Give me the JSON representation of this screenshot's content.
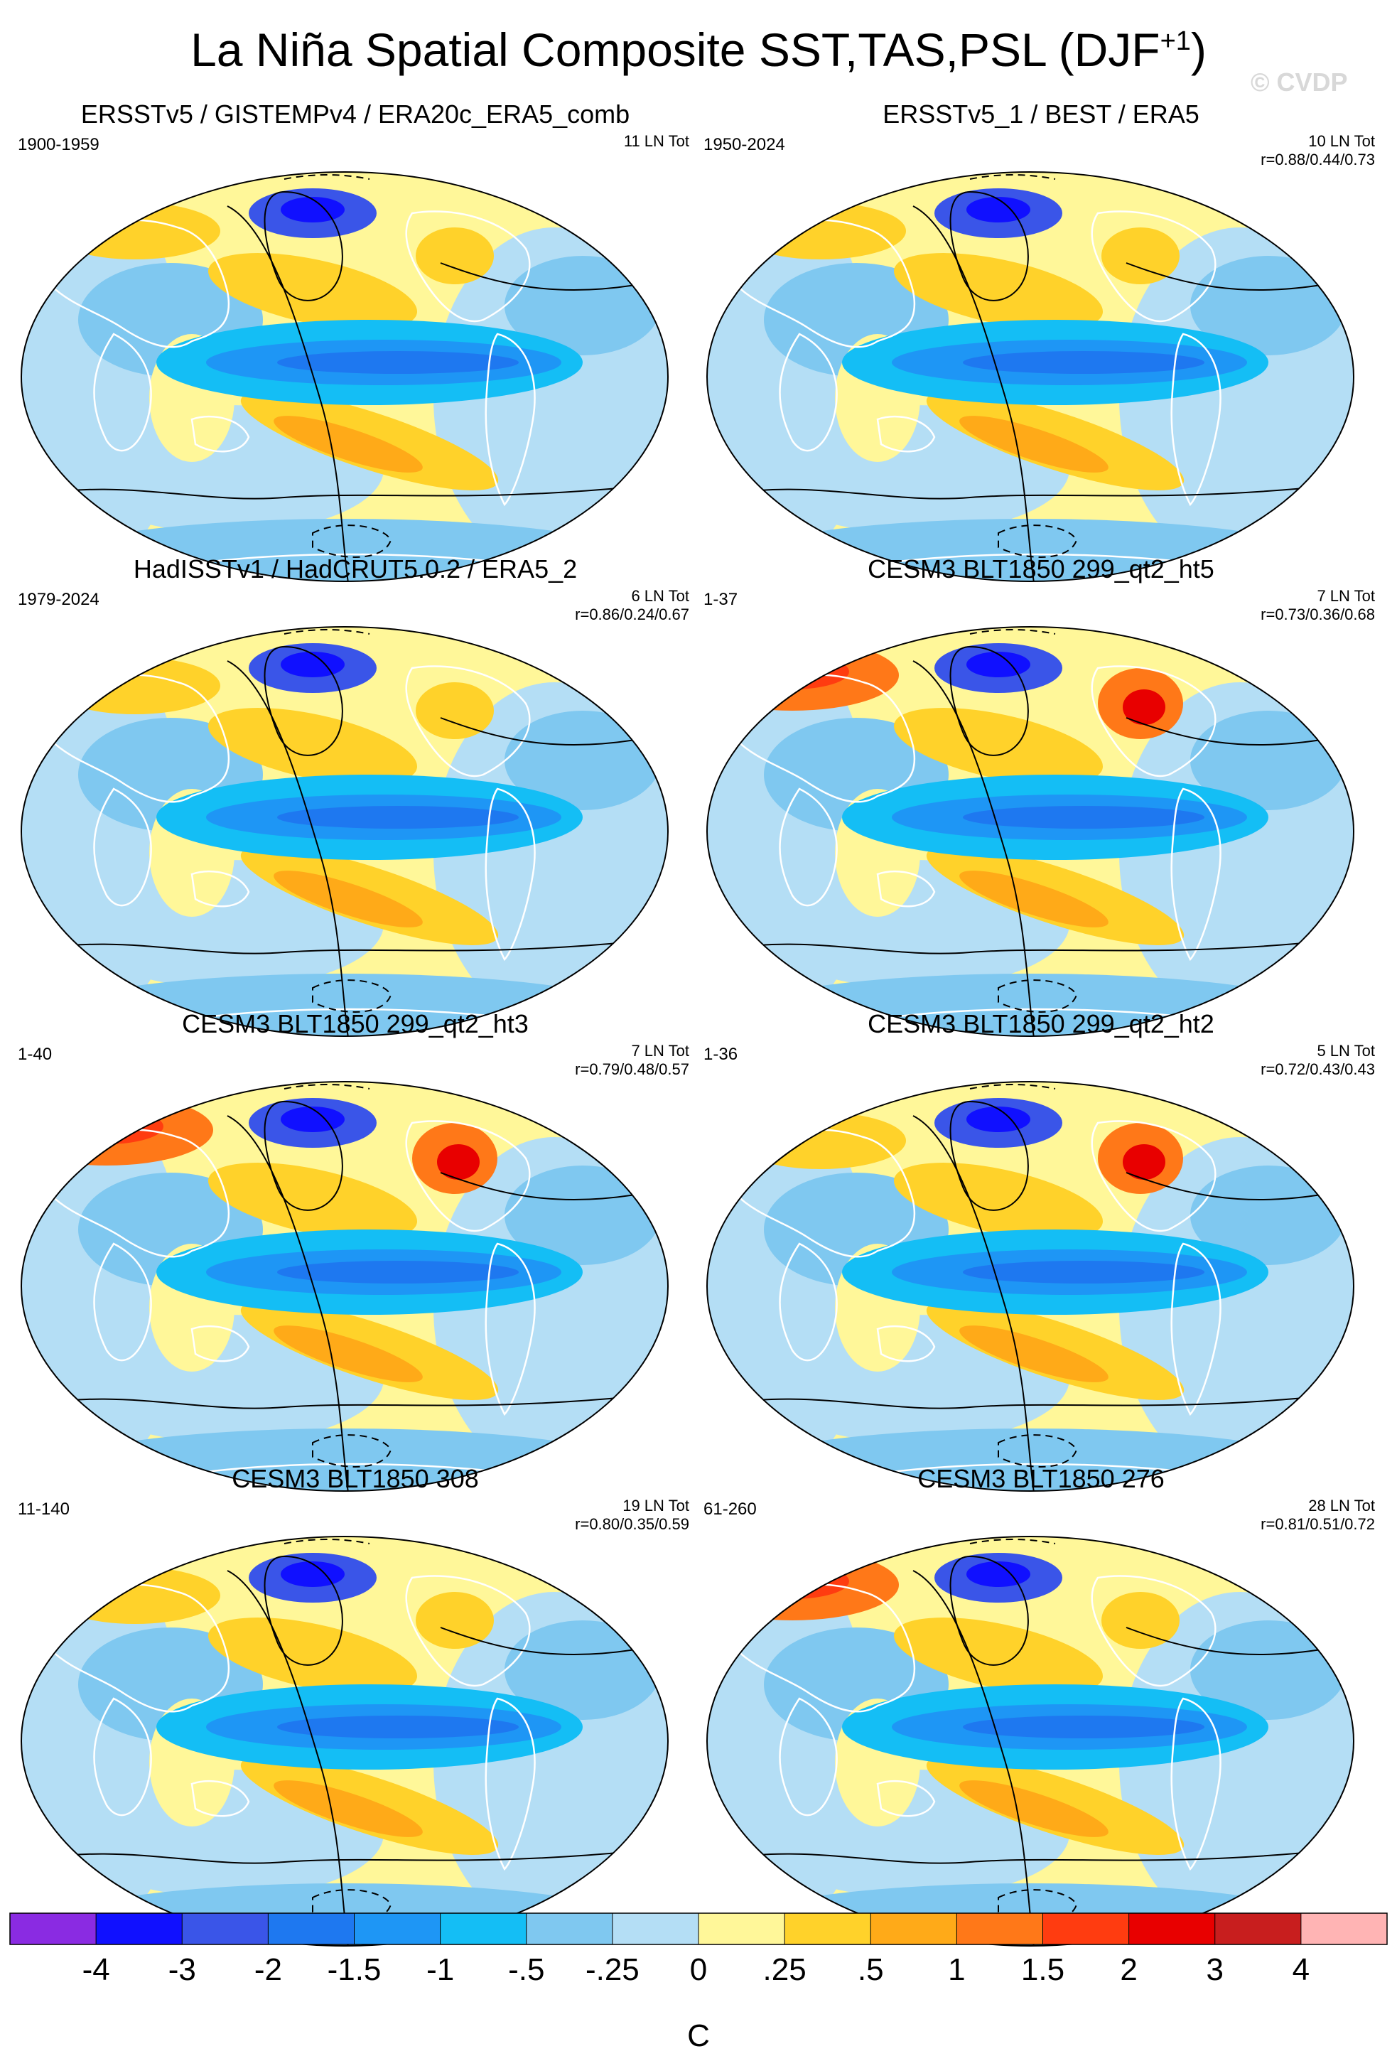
{
  "header": {
    "title": "La Niña Spatial Composite SST,TAS,PSL (DJF",
    "title_superscript": "+1",
    "title_close": ")",
    "copyright": "© CVDP"
  },
  "colors": {
    "ocean_base": "#fff799",
    "land_outline": "#ffffff",
    "contour": "#000000"
  },
  "chart_data": {
    "type": "heatmap",
    "projection": "Robinson (global)",
    "variables": [
      "SST",
      "TAS",
      "PSL"
    ],
    "season": "DJF+1",
    "colorbar": {
      "label": "C",
      "levels": [
        "-4",
        "-3",
        "-2",
        "-1.5",
        "-1",
        "-.5",
        "-.25",
        "0",
        ".25",
        ".5",
        "1",
        "1.5",
        "2",
        "3",
        "4"
      ],
      "colors": [
        "#8a2be2",
        "#1010ff",
        "#3a55e8",
        "#1e78f0",
        "#1e96f5",
        "#14bef5",
        "#7fc8f0",
        "#b4def5",
        "#fff799",
        "#ffd22a",
        "#ffaa18",
        "#ff7818",
        "#ff3c10",
        "#e80000",
        "#c81e1e",
        "#ffb4b4"
      ]
    },
    "panels": [
      {
        "title": "ERSSTv5 / GISTEMPv4 / ERA20c_ERA5_comb",
        "period": "1900-1959",
        "count": "11 LN Tot",
        "r": "",
        "warm_arctic": false,
        "hotspot": false
      },
      {
        "title": "ERSSTv5_1 / BEST / ERA5",
        "period": "1950-2024",
        "count": "10 LN Tot",
        "r": "r=0.88/0.44/0.73",
        "warm_arctic": false,
        "hotspot": false
      },
      {
        "title": "HadISSTv1 / HadCRUT5.0.2 / ERA5_2",
        "period": "1979-2024",
        "count": "6 LN Tot",
        "r": "r=0.86/0.24/0.67",
        "warm_arctic": false,
        "hotspot": false
      },
      {
        "title": "CESM3 BLT1850 299_qt2_ht5",
        "period": "1-37",
        "count": "7 LN Tot",
        "r": "r=0.73/0.36/0.68",
        "warm_arctic": true,
        "hotspot": true
      },
      {
        "title": "CESM3 BLT1850 299_qt2_ht3",
        "period": "1-40",
        "count": "7 LN Tot",
        "r": "r=0.79/0.48/0.57",
        "warm_arctic": true,
        "hotspot": true
      },
      {
        "title": "CESM3 BLT1850 299_qt2_ht2",
        "period": "1-36",
        "count": "5 LN Tot",
        "r": "r=0.72/0.43/0.43",
        "warm_arctic": false,
        "hotspot": true
      },
      {
        "title": "CESM3 BLT1850 308",
        "period": "11-140",
        "count": "19 LN Tot",
        "r": "r=0.80/0.35/0.59",
        "warm_arctic": false,
        "hotspot": false
      },
      {
        "title": "CESM3 BLT1850 276",
        "period": "61-260",
        "count": "28 LN Tot",
        "r": "r=0.81/0.51/0.72",
        "warm_arctic": true,
        "hotspot": false
      }
    ]
  }
}
